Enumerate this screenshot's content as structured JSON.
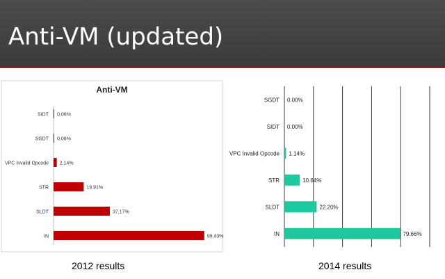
{
  "slide": {
    "title": "Anti-VM (updated)",
    "captions": [
      "2012 results",
      "2014 results"
    ],
    "colors": {
      "title_bg": "#404040",
      "title_rule": "#a31d1d",
      "bar_2012": "#c00000",
      "bar_2014": "#1fc9a0"
    }
  },
  "chart_data": [
    {
      "type": "bar",
      "orientation": "horizontal",
      "title": "Anti-VM",
      "categories": [
        "SIDT",
        "SGDT",
        "VPC Invalid Opcode",
        "STR",
        "SLDT",
        "IN"
      ],
      "values": [
        0.06,
        0.06,
        2.14,
        19.91,
        37.17,
        99.43
      ],
      "data_labels": [
        "0,06%",
        "0,06%",
        "2,14%",
        "19,91%",
        "37,17%",
        "99,43%"
      ],
      "xlim": [
        0,
        100
      ],
      "grid": false,
      "bar_color": "#c00000"
    },
    {
      "type": "bar",
      "orientation": "horizontal",
      "title": "",
      "categories": [
        "SGDT",
        "SIDT",
        "VPC Invalid Opcode",
        "STR",
        "SLDT",
        "IN"
      ],
      "values": [
        0.0,
        0.0,
        1.14,
        10.64,
        22.2,
        79.66
      ],
      "data_labels": [
        "0.00%",
        "0.00%",
        "1.14%",
        "10.64%",
        "22.20%",
        "79.66%"
      ],
      "xlim": [
        0,
        100
      ],
      "grid": true,
      "bar_color": "#1fc9a0"
    }
  ]
}
